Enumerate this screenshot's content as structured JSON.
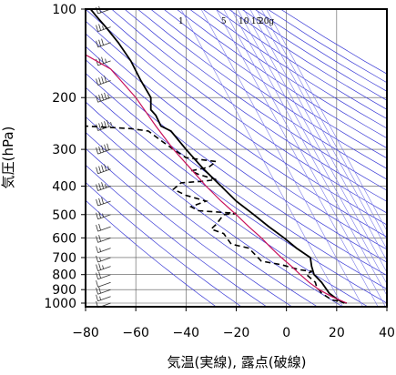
{
  "chart_data": {
    "type": "line",
    "title": "",
    "xlabel": "気温(実線), 露点(破線)",
    "ylabel": "気圧(hPa)",
    "x_ticks": [
      -80,
      -60,
      -40,
      -20,
      0,
      20,
      40
    ],
    "x_tick_labels": [
      "−80",
      "−60",
      "−40",
      "−20",
      "0",
      "20",
      "40"
    ],
    "y_ticks": [
      100,
      200,
      300,
      400,
      500,
      600,
      700,
      800,
      900,
      1000
    ],
    "y_tick_labels": [
      "100",
      "200",
      "300",
      "400",
      "500",
      "600",
      "700",
      "800",
      "900",
      "1000"
    ],
    "xlim": [
      -80,
      40
    ],
    "ylim": [
      1050,
      100
    ],
    "y_scale": "log",
    "grid": true,
    "colors": {
      "temperature": "#000000",
      "dewpoint": "#000000",
      "parcel": "#c8105a",
      "dry_adiabat": "#3a3ad6",
      "mixing_ratio": "#7a7ae8",
      "grid": "#555555"
    },
    "mixing_ratio_labels": [
      "1",
      "5",
      "10",
      "15",
      "20g"
    ],
    "mixing_ratio_label_x": [
      -42,
      -25,
      -17,
      -12,
      -8
    ],
    "series": [
      {
        "style": "solid",
        "points": [
          {
            "x": 23.0,
            "p": 1000
          },
          {
            "x": 20.5,
            "p": 975
          },
          {
            "x": 17.0,
            "p": 925
          },
          {
            "x": 14.0,
            "p": 850
          },
          {
            "x": 11.0,
            "p": 800
          },
          {
            "x": 10.0,
            "p": 750
          },
          {
            "x": 9.5,
            "p": 700
          },
          {
            "x": 4.0,
            "p": 650
          },
          {
            "x": -1.0,
            "p": 600
          },
          {
            "x": -7.0,
            "p": 550
          },
          {
            "x": -13.0,
            "p": 500
          },
          {
            "x": -20.0,
            "p": 450
          },
          {
            "x": -26.0,
            "p": 400
          },
          {
            "x": -33.0,
            "p": 350
          },
          {
            "x": -40.0,
            "p": 300
          },
          {
            "x": -46.0,
            "p": 260
          },
          {
            "x": -50.0,
            "p": 250
          },
          {
            "x": -52.0,
            "p": 230
          },
          {
            "x": -54.0,
            "p": 220
          },
          {
            "x": -54.0,
            "p": 200
          },
          {
            "x": -58.0,
            "p": 175
          },
          {
            "x": -62.0,
            "p": 150
          },
          {
            "x": -67.0,
            "p": 130
          },
          {
            "x": -72.0,
            "p": 115
          },
          {
            "x": -76.0,
            "p": 105
          },
          {
            "x": -78.0,
            "p": 100
          }
        ]
      },
      {
        "style": "dashed",
        "points": [
          {
            "x": 24.0,
            "p": 1000
          },
          {
            "x": 18.0,
            "p": 975
          },
          {
            "x": 14.0,
            "p": 925
          },
          {
            "x": 12.0,
            "p": 880
          },
          {
            "x": 11.5,
            "p": 850
          },
          {
            "x": 8.0,
            "p": 800
          },
          {
            "x": 10.0,
            "p": 780
          },
          {
            "x": 5.0,
            "p": 770
          },
          {
            "x": -2.0,
            "p": 740
          },
          {
            "x": -10.0,
            "p": 720
          },
          {
            "x": -15.0,
            "p": 650
          },
          {
            "x": -22.0,
            "p": 630
          },
          {
            "x": -25.0,
            "p": 580
          },
          {
            "x": -30.0,
            "p": 560
          },
          {
            "x": -28.0,
            "p": 540
          },
          {
            "x": -25.0,
            "p": 500
          },
          {
            "x": -20.0,
            "p": 495
          },
          {
            "x": -35.0,
            "p": 485
          },
          {
            "x": -38.0,
            "p": 470
          },
          {
            "x": -32.0,
            "p": 450
          },
          {
            "x": -40.0,
            "p": 430
          },
          {
            "x": -45.0,
            "p": 410
          },
          {
            "x": -42.0,
            "p": 390
          },
          {
            "x": -33.0,
            "p": 385
          },
          {
            "x": -28.0,
            "p": 380
          },
          {
            "x": -35.0,
            "p": 365
          },
          {
            "x": -38.0,
            "p": 355
          },
          {
            "x": -31.0,
            "p": 345
          },
          {
            "x": -28.0,
            "p": 330
          },
          {
            "x": -40.0,
            "p": 320
          },
          {
            "x": -45.0,
            "p": 300
          },
          {
            "x": -50.0,
            "p": 280
          },
          {
            "x": -55.0,
            "p": 260
          },
          {
            "x": -62.0,
            "p": 255
          },
          {
            "x": -80.0,
            "p": 250
          }
        ]
      },
      {
        "style": "parcel",
        "points": [
          {
            "x": 24.0,
            "p": 1000
          },
          {
            "x": 18.0,
            "p": 950
          },
          {
            "x": 13.0,
            "p": 900
          },
          {
            "x": 9.0,
            "p": 850
          },
          {
            "x": 5.5,
            "p": 800
          },
          {
            "x": 2.0,
            "p": 750
          },
          {
            "x": -2.0,
            "p": 700
          },
          {
            "x": -6.0,
            "p": 650
          },
          {
            "x": -10.0,
            "p": 600
          },
          {
            "x": -15.0,
            "p": 550
          },
          {
            "x": -20.0,
            "p": 500
          },
          {
            "x": -26.0,
            "p": 450
          },
          {
            "x": -32.0,
            "p": 400
          },
          {
            "x": -38.0,
            "p": 350
          },
          {
            "x": -45.0,
            "p": 300
          },
          {
            "x": -52.0,
            "p": 250
          },
          {
            "x": -60.0,
            "p": 200
          },
          {
            "x": -70.0,
            "p": 160
          },
          {
            "x": -80.0,
            "p": 143
          }
        ]
      }
    ],
    "wind_barbs": [
      {
        "p": 1000,
        "speed": 10
      },
      {
        "p": 950,
        "speed": 15
      },
      {
        "p": 900,
        "speed": 20
      },
      {
        "p": 850,
        "speed": 10
      },
      {
        "p": 800,
        "speed": 20
      },
      {
        "p": 750,
        "speed": 25
      },
      {
        "p": 700,
        "speed": 15
      },
      {
        "p": 650,
        "speed": 15
      },
      {
        "p": 600,
        "speed": 20
      },
      {
        "p": 550,
        "speed": 20
      },
      {
        "p": 500,
        "speed": 25
      },
      {
        "p": 450,
        "speed": 30
      },
      {
        "p": 400,
        "speed": 35
      },
      {
        "p": 350,
        "speed": 45
      },
      {
        "p": 300,
        "speed": 50
      },
      {
        "p": 250,
        "speed": 55
      },
      {
        "p": 200,
        "speed": 45
      },
      {
        "p": 175,
        "speed": 40
      },
      {
        "p": 150,
        "speed": 35
      },
      {
        "p": 130,
        "speed": 30
      },
      {
        "p": 115,
        "speed": 25
      },
      {
        "p": 100,
        "speed": 20
      }
    ]
  }
}
